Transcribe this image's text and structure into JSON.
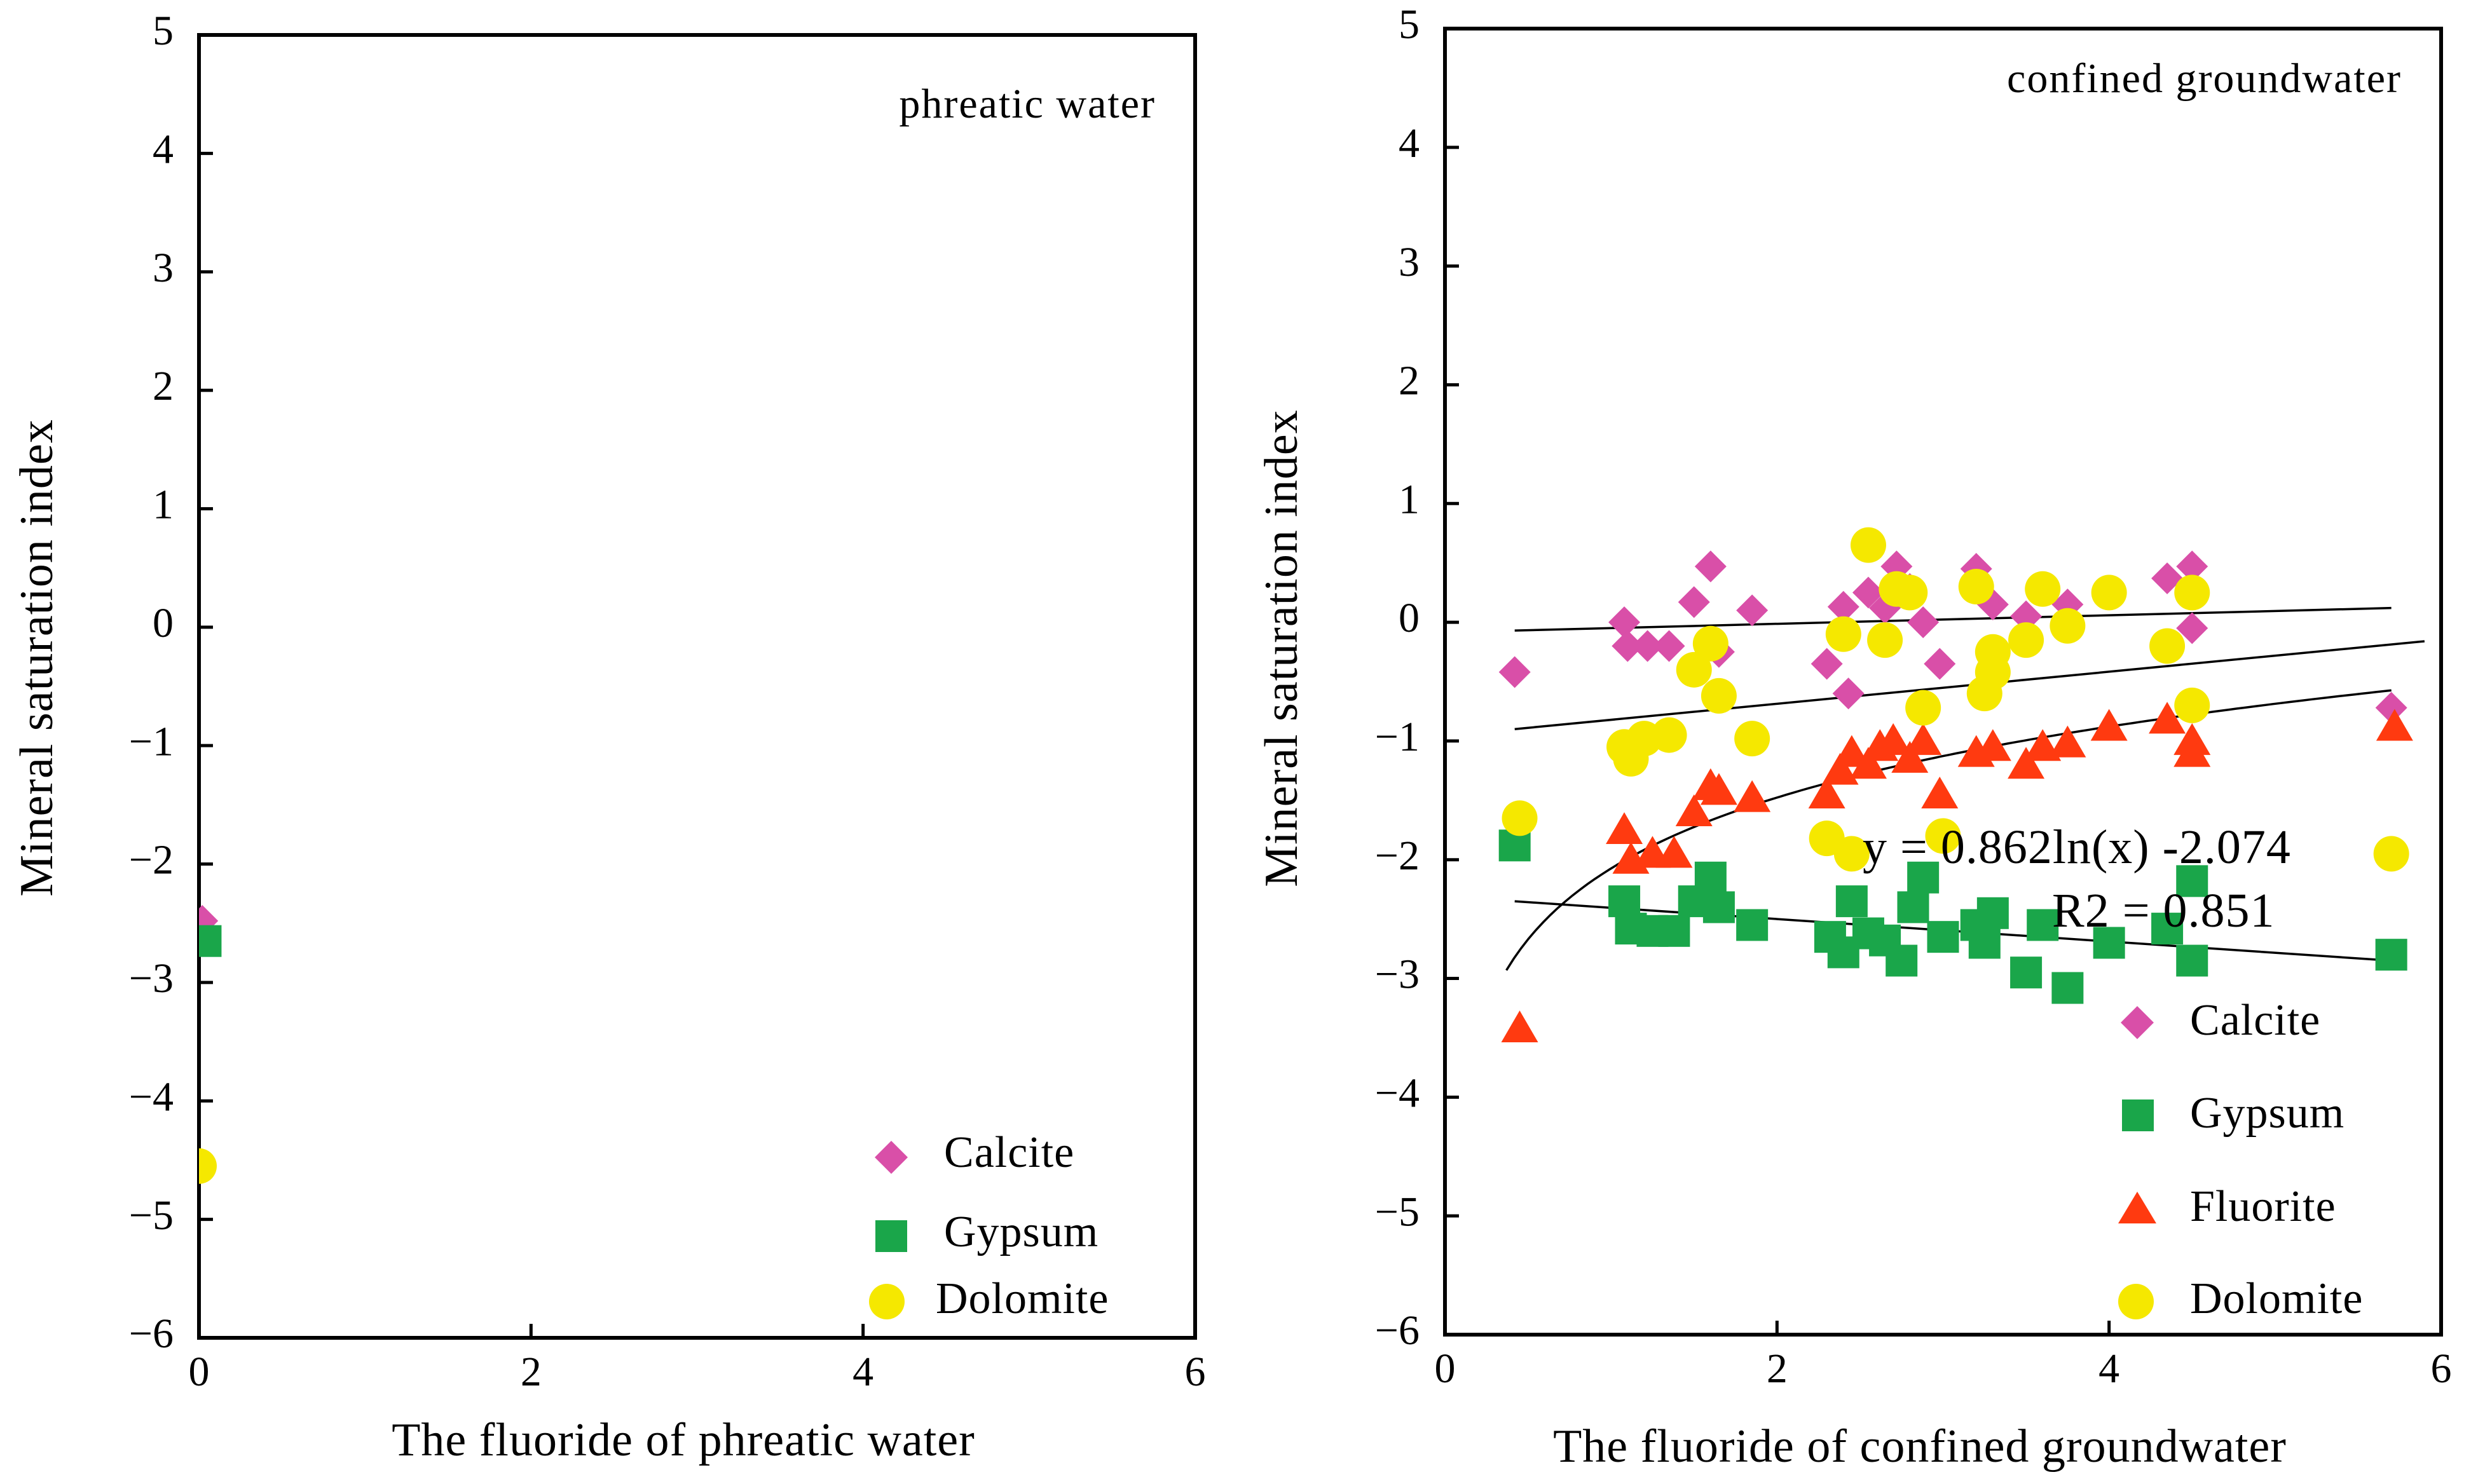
{
  "chart_data": [
    {
      "type": "scatter",
      "id": "left",
      "annotation": "phreatic water",
      "xlabel": "The fluoride of phreatic water",
      "ylabel": "Mineral saturation index",
      "xlim": [
        0,
        6
      ],
      "ylim": [
        -6,
        5
      ],
      "xticks": [
        0,
        2,
        4,
        6
      ],
      "yticks": [
        5,
        4,
        3,
        2,
        1,
        0,
        -1,
        -2,
        -3,
        -4,
        -5,
        -6
      ],
      "xtick_labels": [
        "0",
        "2",
        "4",
        "6"
      ],
      "ytick_labels": [
        "5",
        "4",
        "3",
        "2",
        "1",
        "0",
        "−1",
        "−2",
        "−3",
        "−4",
        "−5",
        "−6"
      ],
      "legend": {
        "position": "bottom-right",
        "entries": [
          "Calcite",
          "Gypsum",
          "Dolomite"
        ]
      },
      "series": [
        {
          "name": "Calcite",
          "marker": "diamond",
          "color": "#D94FA8",
          "points": [
            [
              0.02,
              -2.48
            ]
          ]
        },
        {
          "name": "Gypsum",
          "marker": "square",
          "color": "#1AA64A",
          "points": [
            [
              0.04,
              -2.65
            ]
          ]
        },
        {
          "name": "Dolomite",
          "marker": "circle",
          "color": "#F5E800",
          "points": [
            [
              0.0,
              -4.55
            ]
          ]
        }
      ]
    },
    {
      "type": "scatter",
      "id": "right",
      "annotation": "confined groundwater",
      "xlabel": "The fluoride of confined groundwater",
      "ylabel": "Mineral saturation index",
      "xlim": [
        0,
        6
      ],
      "ylim": [
        -6,
        5
      ],
      "xticks": [
        0,
        2,
        4,
        6
      ],
      "yticks": [
        5,
        4,
        3,
        2,
        1,
        0,
        -1,
        -2,
        -3,
        -4,
        -5,
        -6
      ],
      "xtick_labels": [
        "0",
        "2",
        "4",
        "6"
      ],
      "ytick_labels": [
        "5",
        "4",
        "3",
        "2",
        "1",
        "0",
        "−1",
        "−2",
        "−3",
        "−4",
        "−5",
        "−6"
      ],
      "legend": {
        "position": "bottom-right",
        "entries": [
          "Calcite",
          "Gypsum",
          "Fluorite",
          "Dolomite"
        ]
      },
      "equation": {
        "text": "y = 0.862ln(x) -2.074",
        "r2": "R2 = 0.851"
      },
      "trendlines": [
        {
          "series": "Calcite",
          "type": "linear",
          "from": [
            0.42,
            -0.07
          ],
          "to": [
            5.7,
            0.12
          ]
        },
        {
          "series": "Dolomite",
          "type": "linear",
          "from": [
            0.42,
            -0.9
          ],
          "to": [
            5.9,
            -0.16
          ]
        },
        {
          "series": "Gypsum",
          "type": "linear",
          "from": [
            0.42,
            -2.35
          ],
          "to": [
            5.7,
            -2.85
          ]
        },
        {
          "series": "Fluorite",
          "type": "log",
          "a": 0.862,
          "b": -2.074,
          "xrange": [
            0.37,
            5.7
          ]
        }
      ],
      "series": [
        {
          "name": "Calcite",
          "marker": "diamond",
          "color": "#D94FA8",
          "points": [
            [
              0.42,
              -0.42
            ],
            [
              1.08,
              0.0
            ],
            [
              1.1,
              -0.2
            ],
            [
              1.22,
              -0.2
            ],
            [
              1.35,
              -0.2
            ],
            [
              1.5,
              0.17
            ],
            [
              1.6,
              0.47
            ],
            [
              1.65,
              -0.25
            ],
            [
              1.85,
              0.1
            ],
            [
              2.3,
              -0.35
            ],
            [
              2.4,
              0.13
            ],
            [
              2.43,
              -0.6
            ],
            [
              2.55,
              0.25
            ],
            [
              2.65,
              0.12
            ],
            [
              2.72,
              0.47
            ],
            [
              2.8,
              0.28
            ],
            [
              2.88,
              0.0
            ],
            [
              2.98,
              -0.35
            ],
            [
              3.2,
              0.45
            ],
            [
              3.3,
              0.15
            ],
            [
              3.5,
              0.05
            ],
            [
              3.75,
              0.15
            ],
            [
              4.35,
              0.37
            ],
            [
              4.5,
              0.47
            ],
            [
              4.5,
              -0.05
            ],
            [
              5.7,
              -0.72
            ]
          ]
        },
        {
          "name": "Gypsum",
          "marker": "square",
          "color": "#1AA64A",
          "points": [
            [
              0.42,
              -1.88
            ],
            [
              1.08,
              -2.35
            ],
            [
              1.12,
              -2.58
            ],
            [
              1.25,
              -2.6
            ],
            [
              1.38,
              -2.6
            ],
            [
              1.5,
              -2.35
            ],
            [
              1.6,
              -2.15
            ],
            [
              1.65,
              -2.4
            ],
            [
              1.85,
              -2.55
            ],
            [
              2.32,
              -2.65
            ],
            [
              2.4,
              -2.78
            ],
            [
              2.45,
              -2.35
            ],
            [
              2.55,
              -2.62
            ],
            [
              2.65,
              -2.68
            ],
            [
              2.75,
              -2.85
            ],
            [
              2.82,
              -2.4
            ],
            [
              2.88,
              -2.15
            ],
            [
              3.0,
              -2.65
            ],
            [
              3.2,
              -2.55
            ],
            [
              3.25,
              -2.7
            ],
            [
              3.3,
              -2.45
            ],
            [
              3.5,
              -2.95
            ],
            [
              3.6,
              -2.55
            ],
            [
              3.75,
              -3.08
            ],
            [
              4.0,
              -2.7
            ],
            [
              4.35,
              -2.58
            ],
            [
              4.5,
              -2.85
            ],
            [
              4.5,
              -2.18
            ],
            [
              5.7,
              -2.8
            ]
          ]
        },
        {
          "name": "Fluorite",
          "marker": "triangle",
          "color": "#FF3A10",
          "points": [
            [
              0.45,
              -3.42
            ],
            [
              1.08,
              -1.75
            ],
            [
              1.12,
              -2.0
            ],
            [
              1.25,
              -1.95
            ],
            [
              1.38,
              -1.95
            ],
            [
              1.5,
              -1.6
            ],
            [
              1.6,
              -1.38
            ],
            [
              1.65,
              -1.42
            ],
            [
              1.85,
              -1.48
            ],
            [
              2.3,
              -1.45
            ],
            [
              2.38,
              -1.25
            ],
            [
              2.45,
              -1.1
            ],
            [
              2.55,
              -1.2
            ],
            [
              2.62,
              -1.05
            ],
            [
              2.7,
              -1.0
            ],
            [
              2.8,
              -1.15
            ],
            [
              2.88,
              -1.0
            ],
            [
              2.98,
              -1.45
            ],
            [
              3.2,
              -1.1
            ],
            [
              3.3,
              -1.05
            ],
            [
              3.5,
              -1.2
            ],
            [
              3.6,
              -1.05
            ],
            [
              3.75,
              -1.02
            ],
            [
              4.0,
              -0.88
            ],
            [
              4.35,
              -0.82
            ],
            [
              4.5,
              -1.0
            ],
            [
              4.5,
              -1.1
            ],
            [
              5.72,
              -0.88
            ]
          ]
        },
        {
          "name": "Dolomite",
          "marker": "circle",
          "color": "#F5E800",
          "points": [
            [
              0.45,
              -1.65
            ],
            [
              1.08,
              -1.05
            ],
            [
              1.12,
              -1.15
            ],
            [
              1.2,
              -0.98
            ],
            [
              1.35,
              -0.95
            ],
            [
              1.5,
              -0.4
            ],
            [
              1.6,
              -0.18
            ],
            [
              1.65,
              -0.62
            ],
            [
              1.85,
              -0.98
            ],
            [
              2.3,
              -1.82
            ],
            [
              2.4,
              -0.1
            ],
            [
              2.45,
              -1.95
            ],
            [
              2.55,
              0.65
            ],
            [
              2.65,
              -0.15
            ],
            [
              2.72,
              0.28
            ],
            [
              2.8,
              0.25
            ],
            [
              2.88,
              -0.72
            ],
            [
              3.0,
              -1.8
            ],
            [
              3.2,
              0.3
            ],
            [
              3.25,
              -0.6
            ],
            [
              3.3,
              -0.25
            ],
            [
              3.3,
              -0.42
            ],
            [
              3.5,
              -0.15
            ],
            [
              3.6,
              0.28
            ],
            [
              3.75,
              -0.03
            ],
            [
              4.0,
              0.25
            ],
            [
              4.35,
              -0.2
            ],
            [
              4.5,
              0.25
            ],
            [
              4.5,
              -0.7
            ],
            [
              5.7,
              -1.95
            ]
          ]
        }
      ]
    }
  ]
}
